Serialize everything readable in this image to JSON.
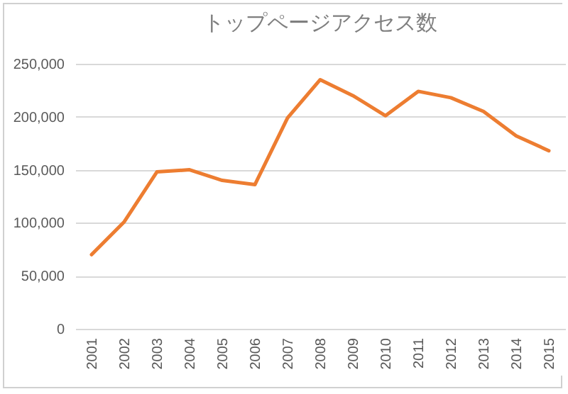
{
  "chart_data": {
    "type": "line",
    "title": "トップページアクセス数",
    "categories": [
      "2001",
      "2002",
      "2003",
      "2004",
      "2005",
      "2006",
      "2007",
      "2008",
      "2009",
      "2010",
      "2011",
      "2012",
      "2013",
      "2014",
      "2015"
    ],
    "series": [
      {
        "color": "#ed7d31",
        "values": [
          70000,
          101000,
          148000,
          150000,
          140000,
          136000,
          199000,
          235000,
          220000,
          201000,
          224000,
          218000,
          205000,
          182000,
          168000
        ]
      }
    ],
    "ylim": [
      0,
      250000
    ],
    "yticks": [
      0,
      {
        "value": 50000,
        "label": "50,000"
      },
      {
        "value": 100000,
        "label": "100,000"
      },
      {
        "value": 150000,
        "label": "150,000"
      },
      {
        "value": 200000,
        "label": "200,000"
      },
      {
        "value": 250000,
        "label": "250,000"
      }
    ],
    "grid": "y",
    "legend": false,
    "marker": "none",
    "line_style": "solid"
  }
}
